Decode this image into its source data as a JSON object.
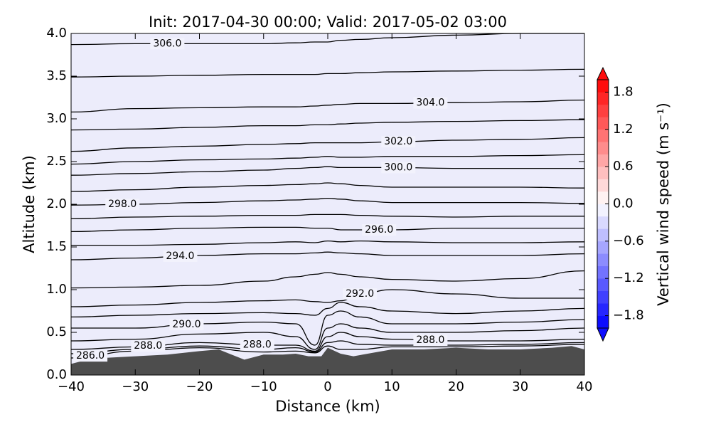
{
  "chart_data": {
    "type": "contour",
    "title": "Init: 2017-04-30 00:00; Valid: 2017-05-02 03:00",
    "xlabel": "Distance (km)",
    "ylabel": "Altitude (km)",
    "xlim": [
      -40,
      40
    ],
    "xticks": [
      {
        "value": -40,
        "label": "−40"
      },
      {
        "value": -30,
        "label": "−30"
      },
      {
        "value": -20,
        "label": "−20"
      },
      {
        "value": -10,
        "label": "−10"
      },
      0,
      10,
      20,
      30,
      40
    ],
    "ylim": [
      0,
      4
    ],
    "yticks": [
      {
        "value": 0,
        "label": "0.0"
      },
      {
        "value": 0.5,
        "label": "0.5"
      },
      {
        "value": 1,
        "label": "1.0"
      },
      {
        "value": 1.5,
        "label": "1.5"
      },
      {
        "value": 2,
        "label": "2.0"
      },
      {
        "value": 2.5,
        "label": "2.5"
      },
      {
        "value": 3,
        "label": "3.0"
      },
      {
        "value": 3.5,
        "label": "3.5"
      },
      {
        "value": 4,
        "label": "4.0"
      }
    ],
    "contour_color": "#000000",
    "contour_x": [
      -40,
      -30,
      -20,
      -10,
      -5,
      -2,
      0,
      2,
      5,
      10,
      20,
      30,
      40
    ],
    "contours": [
      {
        "level": 286,
        "label": "286.0",
        "values": [
          0.2,
          0.28,
          0.32,
          0.27,
          0.28,
          0.26,
          0.34,
          0.3,
          0.3,
          0.33,
          0.33,
          0.34,
          0.36
        ]
      },
      {
        "level": 287,
        "values": [
          0.25,
          0.3,
          0.34,
          0.3,
          0.32,
          0.27,
          0.38,
          0.4,
          0.36,
          0.35,
          0.35,
          0.36,
          0.38
        ]
      },
      {
        "level": 288,
        "label": "288.0",
        "values": [
          0.3,
          0.33,
          0.38,
          0.35,
          0.35,
          0.28,
          0.45,
          0.5,
          0.45,
          0.42,
          0.4,
          0.4,
          0.42
        ]
      },
      {
        "level": 289,
        "values": [
          0.4,
          0.42,
          0.48,
          0.5,
          0.45,
          0.3,
          0.55,
          0.6,
          0.55,
          0.5,
          0.5,
          0.52,
          0.55
        ]
      },
      {
        "level": 290,
        "label": "290.0",
        "values": [
          0.55,
          0.55,
          0.6,
          0.62,
          0.6,
          0.35,
          0.7,
          0.75,
          0.68,
          0.6,
          0.6,
          0.62,
          0.65
        ]
      },
      {
        "level": 291,
        "values": [
          0.68,
          0.7,
          0.72,
          0.73,
          0.72,
          0.7,
          0.78,
          0.85,
          0.8,
          0.75,
          0.72,
          0.75,
          0.78
        ]
      },
      {
        "level": 292,
        "label": "292.0",
        "values": [
          0.8,
          0.82,
          0.85,
          0.87,
          0.88,
          0.86,
          0.85,
          0.87,
          0.95,
          1.0,
          0.95,
          0.9,
          0.9
        ]
      },
      {
        "level": 293,
        "values": [
          1.02,
          1.03,
          1.05,
          1.1,
          1.15,
          1.18,
          1.2,
          1.18,
          1.15,
          1.12,
          1.1,
          1.13,
          1.22
        ]
      },
      {
        "level": 294,
        "label": "294.0",
        "values": [
          1.35,
          1.37,
          1.4,
          1.42,
          1.42,
          1.43,
          1.44,
          1.43,
          1.42,
          1.4,
          1.4,
          1.4,
          1.42
        ]
      },
      {
        "level": 295,
        "values": [
          1.52,
          1.52,
          1.53,
          1.55,
          1.56,
          1.55,
          1.57,
          1.56,
          1.57,
          1.56,
          1.55,
          1.55,
          1.56
        ]
      },
      {
        "level": 296,
        "label": "296.0",
        "values": [
          1.68,
          1.7,
          1.72,
          1.73,
          1.73,
          1.72,
          1.72,
          1.7,
          1.7,
          1.7,
          1.72,
          1.72,
          1.72
        ]
      },
      {
        "level": 297,
        "values": [
          1.83,
          1.85,
          1.86,
          1.87,
          1.87,
          1.88,
          1.88,
          1.88,
          1.87,
          1.86,
          1.85,
          1.86,
          1.86
        ]
      },
      {
        "level": 298,
        "label": "298.0",
        "values": [
          1.99,
          2.0,
          2.02,
          2.04,
          2.05,
          2.06,
          2.07,
          2.06,
          2.04,
          2.02,
          2.02,
          2.02,
          2.01
        ]
      },
      {
        "level": 299,
        "values": [
          2.15,
          2.17,
          2.2,
          2.22,
          2.23,
          2.24,
          2.25,
          2.24,
          2.22,
          2.2,
          2.2,
          2.2,
          2.19
        ]
      },
      {
        "level": 300,
        "label": "300.0",
        "values": [
          2.34,
          2.36,
          2.38,
          2.4,
          2.42,
          2.43,
          2.44,
          2.43,
          2.43,
          2.43,
          2.42,
          2.42,
          2.42
        ]
      },
      {
        "level": 301,
        "values": [
          2.47,
          2.5,
          2.52,
          2.53,
          2.54,
          2.55,
          2.56,
          2.55,
          2.55,
          2.56,
          2.56,
          2.57,
          2.58
        ]
      },
      {
        "level": 302,
        "label": "302.0",
        "values": [
          2.62,
          2.66,
          2.68,
          2.7,
          2.71,
          2.72,
          2.72,
          2.72,
          2.72,
          2.73,
          2.75,
          2.76,
          2.78
        ]
      },
      {
        "level": 303,
        "values": [
          2.87,
          2.88,
          2.9,
          2.92,
          2.92,
          2.93,
          2.93,
          2.94,
          2.95,
          2.96,
          2.97,
          2.98,
          2.99
        ]
      },
      {
        "level": 304,
        "label": "304.0",
        "values": [
          3.08,
          3.12,
          3.13,
          3.14,
          3.14,
          3.15,
          3.16,
          3.17,
          3.18,
          3.18,
          3.19,
          3.2,
          3.22
        ]
      },
      {
        "level": 305,
        "values": [
          3.49,
          3.5,
          3.51,
          3.52,
          3.52,
          3.52,
          3.53,
          3.53,
          3.54,
          3.55,
          3.56,
          3.57,
          3.58
        ]
      },
      {
        "level": 306,
        "label": "306.0",
        "values": [
          3.87,
          3.88,
          3.88,
          3.88,
          3.89,
          3.9,
          3.9,
          3.92,
          3.93,
          3.95,
          3.98,
          4.0,
          4.0
        ]
      }
    ],
    "terrain": {
      "color": "#4d4d4d",
      "x": [
        -40,
        -38,
        -35,
        -30,
        -25,
        -20,
        -17,
        -15,
        -13,
        -10,
        -7,
        -5,
        -3,
        -1,
        0,
        2,
        4,
        7,
        10,
        15,
        20,
        25,
        30,
        35,
        38,
        40
      ],
      "values": [
        0.13,
        0.17,
        0.2,
        0.22,
        0.24,
        0.28,
        0.3,
        0.24,
        0.18,
        0.24,
        0.24,
        0.25,
        0.22,
        0.22,
        0.32,
        0.25,
        0.22,
        0.26,
        0.3,
        0.3,
        0.32,
        0.3,
        0.3,
        0.32,
        0.34,
        0.3
      ]
    },
    "colorbar": {
      "label": "Vertical wind speed (m s⁻¹)",
      "extend": "both",
      "levels": [
        -2,
        -1.8,
        -1.6,
        -1.4,
        -1.2,
        -1,
        -0.8,
        -0.6,
        -0.4,
        -0.2,
        0,
        0.2,
        0.4,
        0.6,
        0.8,
        1,
        1.2,
        1.4,
        1.6,
        1.8,
        2
      ],
      "colors": [
        "#0d0dff",
        "#2626ff",
        "#4040ff",
        "#5959ff",
        "#7373ff",
        "#8c8cff",
        "#a6a6ff",
        "#bfbfff",
        "#d9d9ff",
        "#f2f2ff",
        "#fff2f2",
        "#ffd9d9",
        "#ffbfbf",
        "#ffa6a6",
        "#ff8c8c",
        "#ff7373",
        "#ff5959",
        "#ff4040",
        "#ff2626",
        "#ff0d0d"
      ],
      "ticks": [
        {
          "value": -1.8,
          "label": "−1.8"
        },
        {
          "value": -1.2,
          "label": "−1.2"
        },
        {
          "value": -0.6,
          "label": "−0.6"
        },
        {
          "value": 0,
          "label": "0.0"
        },
        {
          "value": 0.6,
          "label": "0.6"
        },
        {
          "value": 1.2,
          "label": "1.2"
        },
        {
          "value": 1.8,
          "label": "1.8"
        }
      ]
    }
  }
}
